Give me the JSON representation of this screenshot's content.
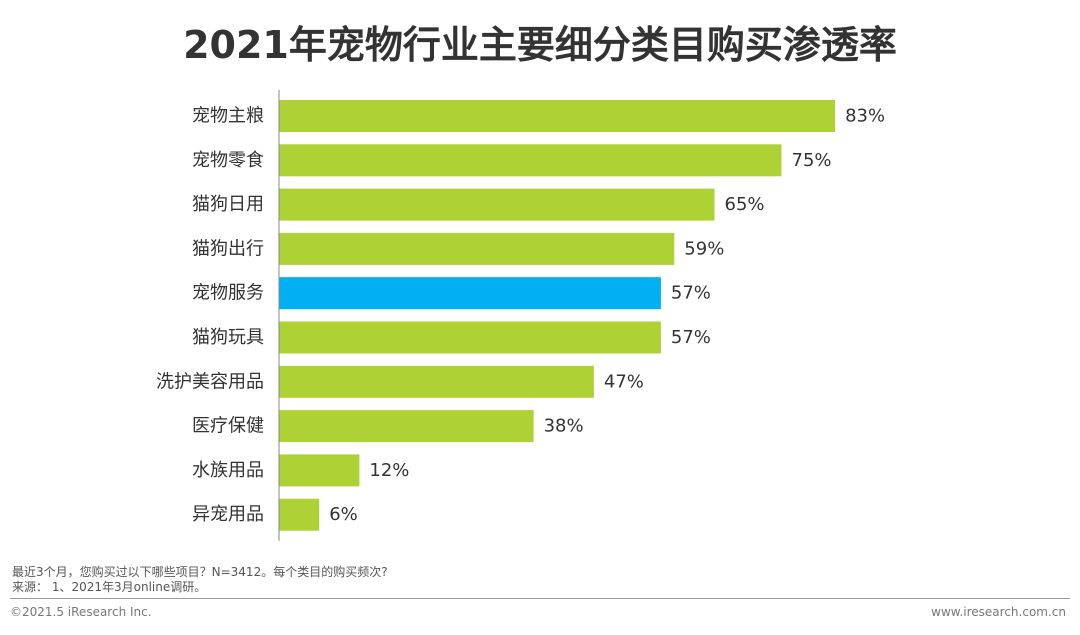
{
  "title": "2021年宠物行业主要细分类目购买渗透率",
  "chart_data": {
    "type": "bar",
    "orientation": "horizontal",
    "categories": [
      "宠物主粮",
      "宠物零食",
      "猫狗日用",
      "猫狗出行",
      "宠物服务",
      "猫狗玩具",
      "洗护美容用品",
      "医疗保健",
      "水族用品",
      "异宠用品"
    ],
    "values": [
      83,
      75,
      65,
      59,
      57,
      57,
      47,
      38,
      12,
      6
    ],
    "value_labels": [
      "83%",
      "75%",
      "65%",
      "59%",
      "57%",
      "57%",
      "47%",
      "38%",
      "12%",
      "6%"
    ],
    "unit": "%",
    "xlim": [
      0,
      100
    ],
    "grid": false,
    "highlight_index": 4,
    "colors": {
      "default": "#AED136",
      "highlight": "#00B0F0"
    }
  },
  "notes": {
    "line1": "最近3个月，您购买过以下哪些项目？N=3412。每个类目的购买频次?",
    "line2": "来源：  1、2021年3月online调研。"
  },
  "footer": {
    "left": "©2021.5 iResearch Inc.",
    "right": "www.iresearch.com.cn"
  }
}
